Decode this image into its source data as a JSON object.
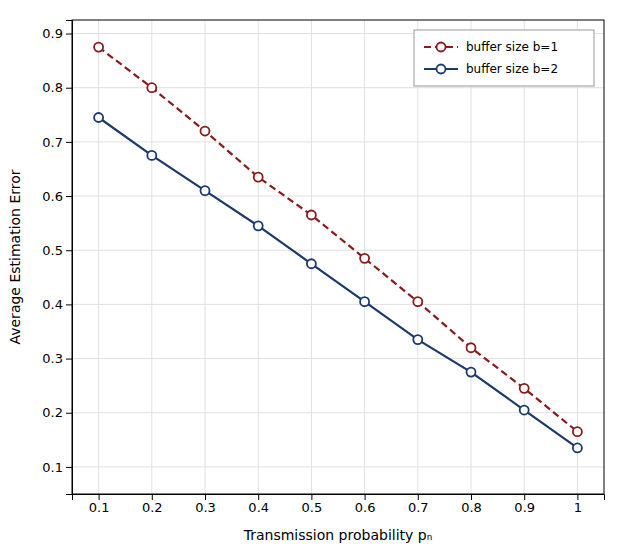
{
  "chart_data": {
    "type": "line",
    "x": [
      0.1,
      0.2,
      0.3,
      0.4,
      0.5,
      0.6,
      0.7,
      0.8,
      0.9,
      1.0
    ],
    "series": [
      {
        "name": "buffer size b=1",
        "color": "#8B1A1A",
        "line_style": "dashed",
        "marker": "circle",
        "values": [
          0.875,
          0.8,
          0.72,
          0.635,
          0.565,
          0.485,
          0.405,
          0.32,
          0.245,
          0.165
        ]
      },
      {
        "name": "buffer size b=2",
        "color": "#1A3A6B",
        "line_style": "solid",
        "marker": "circle",
        "values": [
          0.745,
          0.675,
          0.61,
          0.545,
          0.475,
          0.405,
          0.335,
          0.275,
          0.205,
          0.135
        ]
      }
    ],
    "xlabel": "Transmission probability pₙ",
    "ylabel": "Average Estimation Error",
    "xlim": [
      0.05,
      1.05
    ],
    "ylim": [
      0.05,
      0.925
    ],
    "xticks": [
      0.1,
      0.2,
      0.3,
      0.4,
      0.5,
      0.6,
      0.7,
      0.8,
      0.9,
      1.0
    ],
    "yticks": [
      0.1,
      0.2,
      0.3,
      0.4,
      0.5,
      0.6,
      0.7,
      0.8,
      0.9
    ],
    "grid": true,
    "legend": "upper right"
  }
}
